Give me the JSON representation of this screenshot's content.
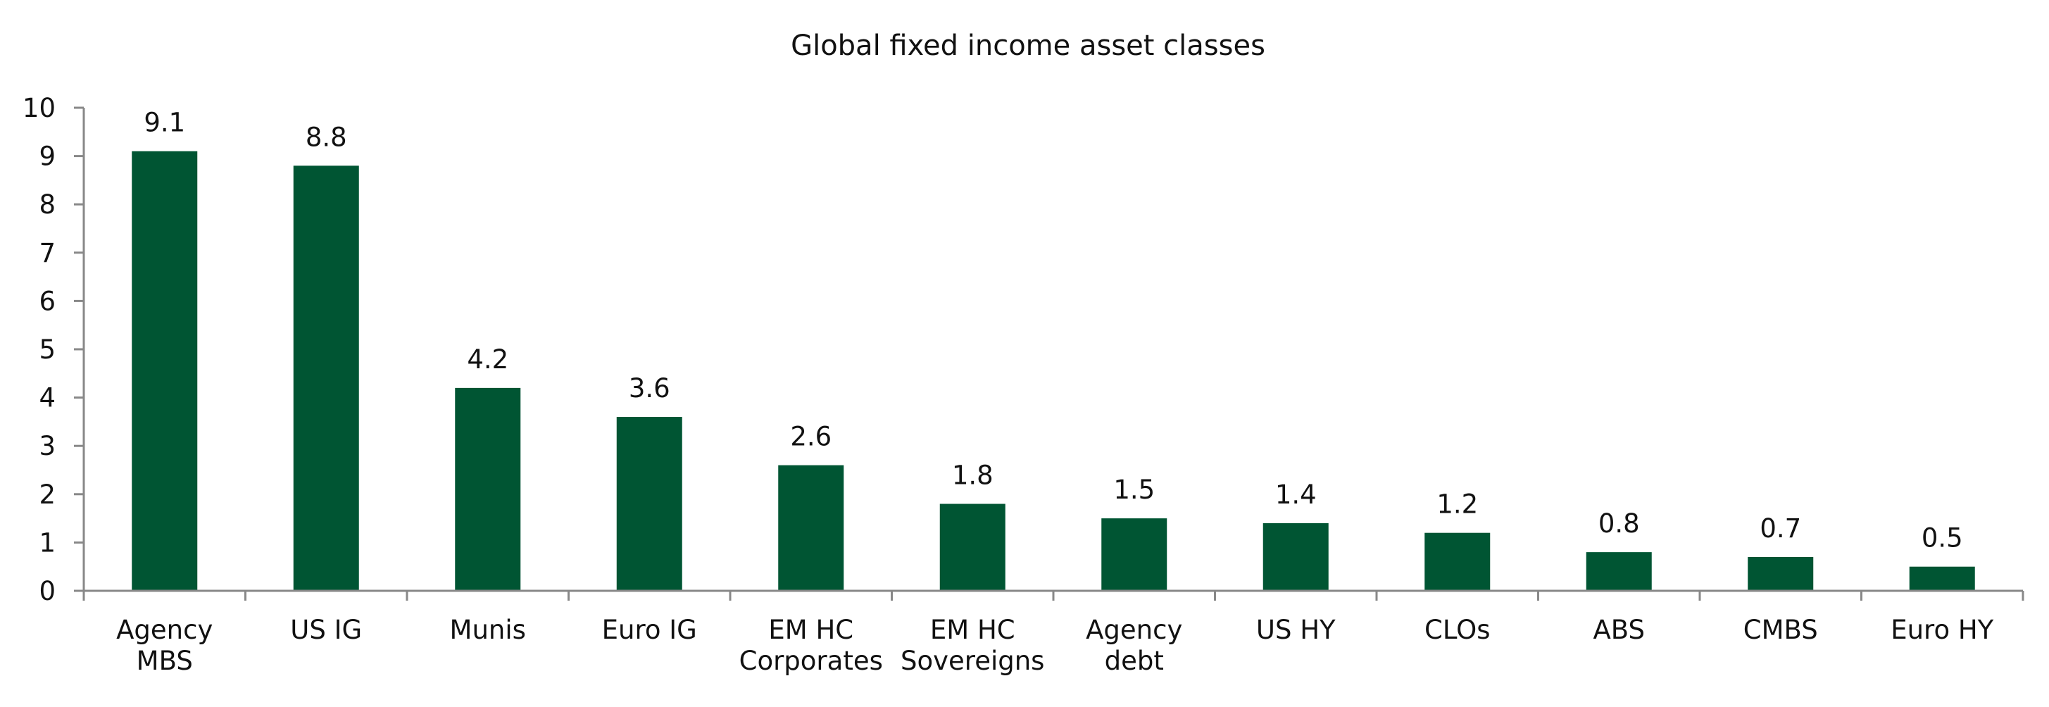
{
  "chart_data": {
    "type": "bar",
    "title": "Global fixed income asset classes",
    "categories": [
      [
        "Agency",
        "MBS"
      ],
      [
        "US IG"
      ],
      [
        "Munis"
      ],
      [
        "Euro IG"
      ],
      [
        "EM HC",
        "Corporates"
      ],
      [
        "EM HC",
        "Sovereigns"
      ],
      [
        "Agency",
        "debt"
      ],
      [
        "US HY"
      ],
      [
        "CLOs"
      ],
      [
        "ABS"
      ],
      [
        "CMBS"
      ],
      [
        "Euro HY"
      ]
    ],
    "values": [
      9.1,
      8.8,
      4.2,
      3.6,
      2.6,
      1.8,
      1.5,
      1.4,
      1.2,
      0.8,
      0.7,
      0.5
    ],
    "data_labels": [
      "9.1",
      "8.8",
      "4.2",
      "3.6",
      "2.6",
      "1.8",
      "1.5",
      "1.4",
      "1.2",
      "0.8",
      "0.7",
      "0.5"
    ],
    "ylim": [
      0,
      10
    ],
    "yticks": [
      0,
      1,
      2,
      3,
      4,
      5,
      6,
      7,
      8,
      9,
      10
    ],
    "xlabel": "",
    "ylabel": "",
    "grid": false,
    "legend": "none",
    "colors": {
      "bar": "#005533",
      "axis": "#888888"
    }
  }
}
